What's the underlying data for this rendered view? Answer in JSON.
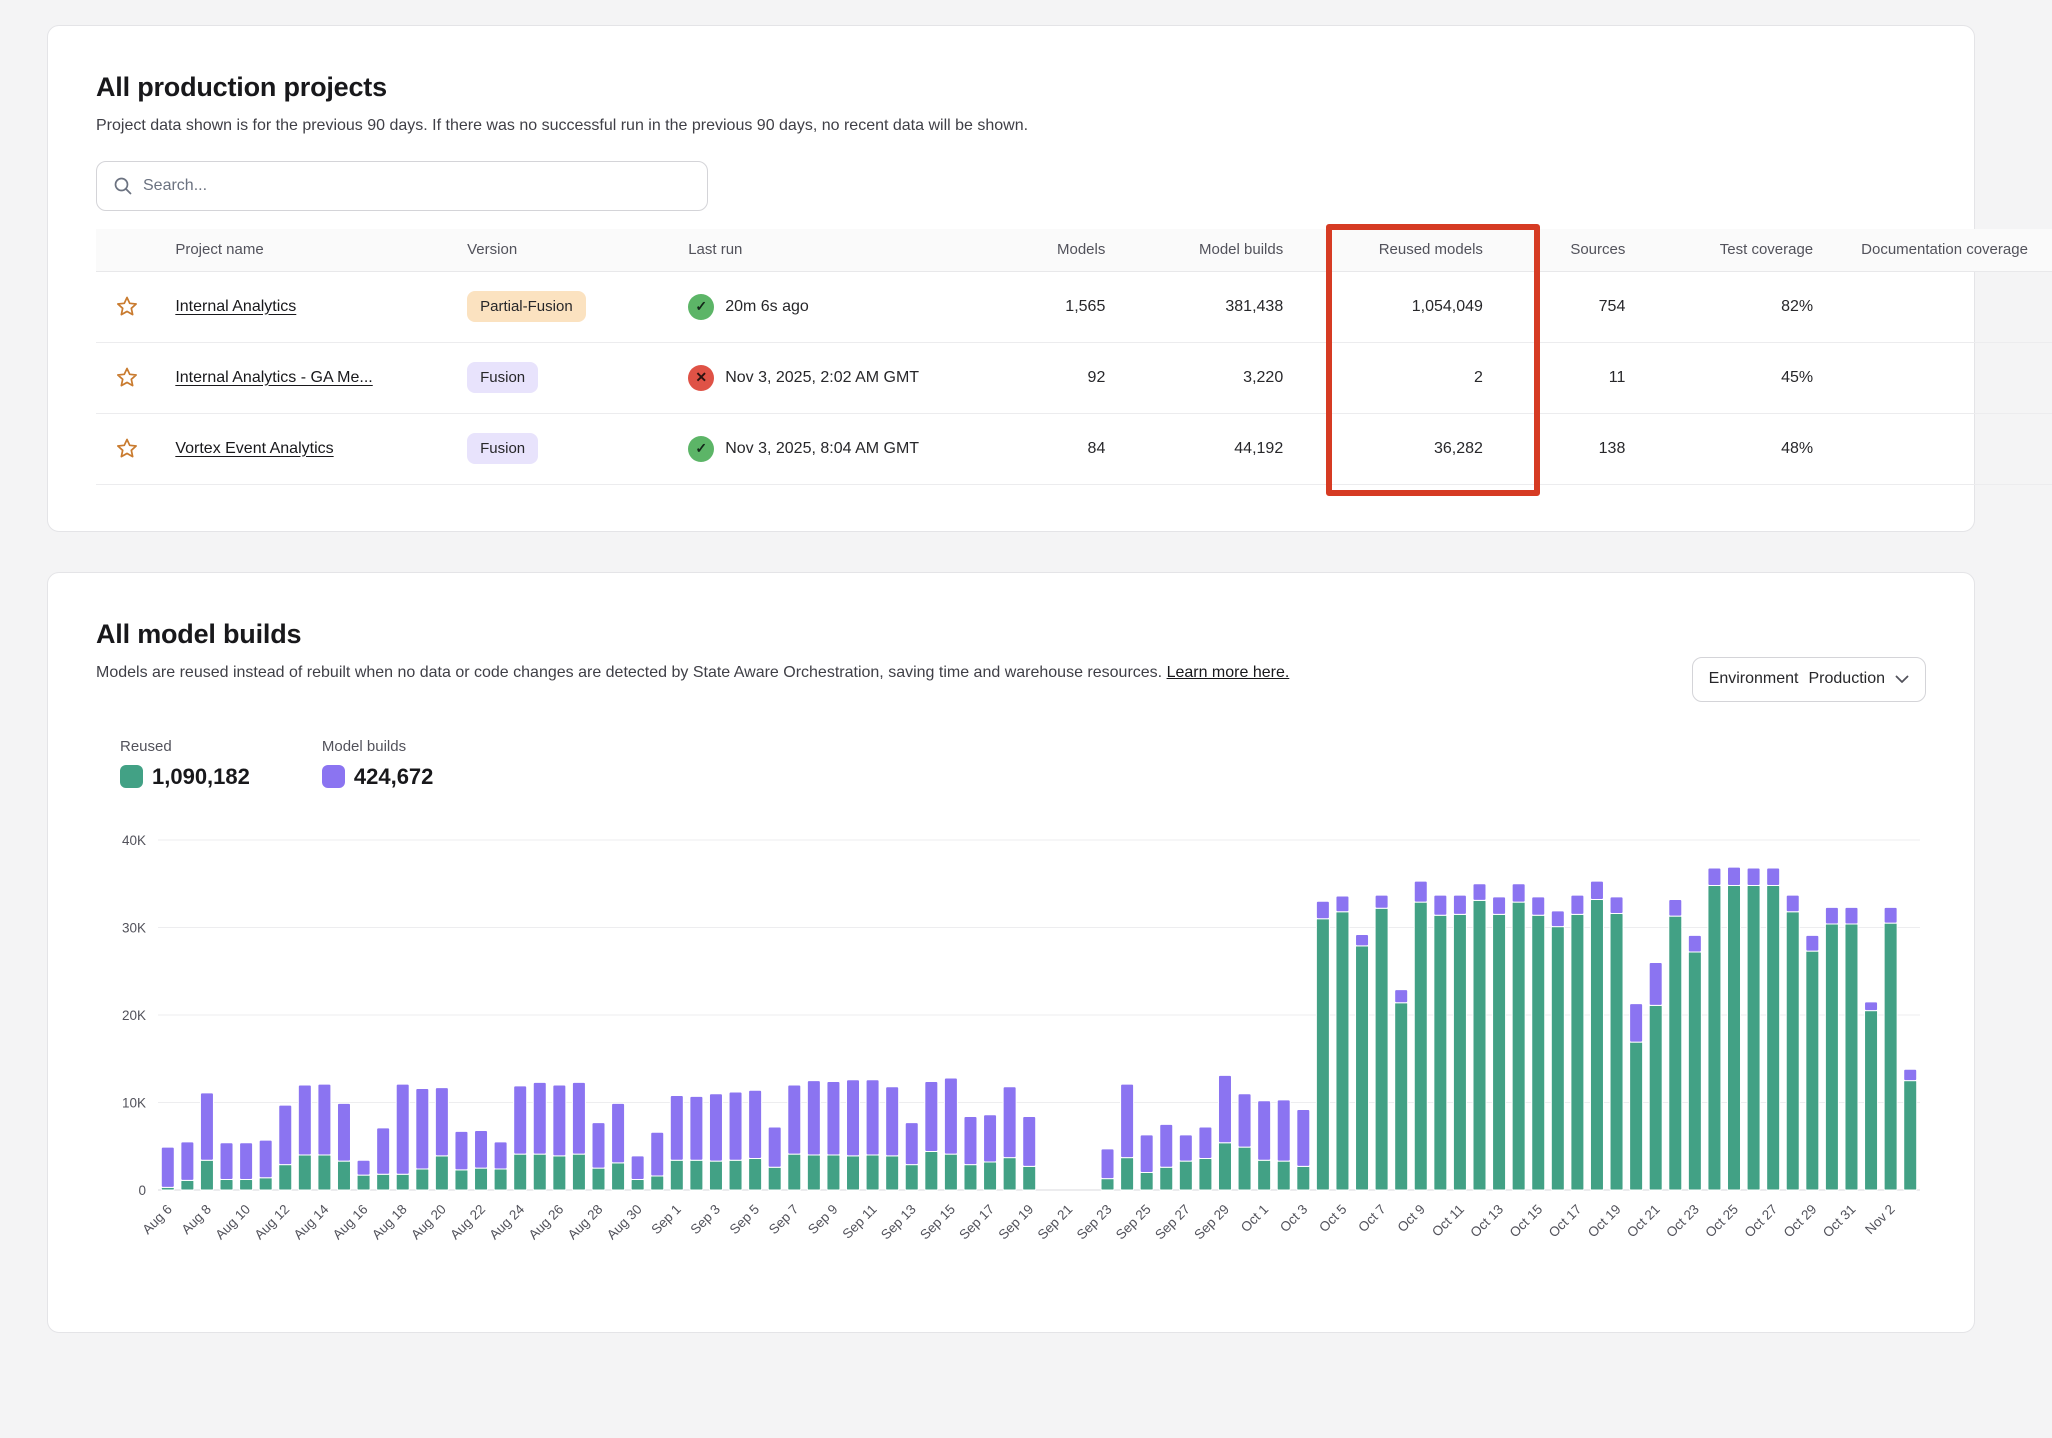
{
  "projects_card": {
    "title": "All production projects",
    "subtitle": "Project data shown is for the previous 90 days. If there was no successful run in the previous 90 days, no recent data will be shown.",
    "search_placeholder": "Search...",
    "columns": [
      "Project name",
      "Version",
      "Last run",
      "Models",
      "Model builds",
      "Reused models",
      "Sources",
      "Test coverage",
      "Documentation coverage"
    ],
    "highlight_color": "#d63b23",
    "rows": [
      {
        "name": "Internal Analytics",
        "version": "Partial-Fusion",
        "version_style": "partial",
        "status": "success",
        "last_run": "20m 6s ago",
        "models": "1,565",
        "model_builds": "381,438",
        "reused_models": "1,054,049",
        "sources": "754",
        "test_coverage": "82%"
      },
      {
        "name": "Internal Analytics - GA Me...",
        "version": "Fusion",
        "version_style": "fusion",
        "status": "error",
        "last_run": "Nov 3, 2025, 2:02 AM GMT",
        "models": "92",
        "model_builds": "3,220",
        "reused_models": "2",
        "sources": "11",
        "test_coverage": "45%"
      },
      {
        "name": "Vortex Event Analytics",
        "version": "Fusion",
        "version_style": "fusion",
        "status": "success",
        "last_run": "Nov 3, 2025, 8:04 AM GMT",
        "models": "84",
        "model_builds": "44,192",
        "reused_models": "36,282",
        "sources": "138",
        "test_coverage": "48%"
      }
    ]
  },
  "builds_card": {
    "title": "All model builds",
    "subtitle": "Models are reused instead of rebuilt when no data or code changes are detected by State Aware Orchestration, saving time and warehouse resources.",
    "learn_more": "Learn more here.",
    "env_label": "Environment",
    "env_value": "Production",
    "legend": [
      {
        "label": "Reused",
        "value": "1,090,182",
        "color": "#42a185"
      },
      {
        "label": "Model builds",
        "value": "424,672",
        "color": "#8b74f1"
      }
    ]
  },
  "chart_data": {
    "type": "bar",
    "subtype": "stacked",
    "title": "All model builds",
    "xlabel": "",
    "ylabel": "",
    "ylim": [
      0,
      40000
    ],
    "yticks": [
      "0",
      "10K",
      "20K",
      "30K",
      "40K"
    ],
    "grid": true,
    "legend_position": "top-left",
    "series_names": [
      "Reused",
      "Model builds"
    ],
    "colors": {
      "reused": "#42a185",
      "builds": "#8b74f1"
    },
    "days": [
      {
        "d": "Aug 6",
        "r": 300,
        "b": 4600
      },
      {
        "d": "Aug 7",
        "r": 1100,
        "b": 4400
      },
      {
        "d": "Aug 8",
        "r": 3400,
        "b": 7700
      },
      {
        "d": "Aug 9",
        "r": 1200,
        "b": 4200
      },
      {
        "d": "Aug 10",
        "r": 1200,
        "b": 4200
      },
      {
        "d": "Aug 11",
        "r": 1400,
        "b": 4300
      },
      {
        "d": "Aug 12",
        "r": 2900,
        "b": 6800
      },
      {
        "d": "Aug 13",
        "r": 4000,
        "b": 8000
      },
      {
        "d": "Aug 14",
        "r": 4000,
        "b": 8100
      },
      {
        "d": "Aug 15",
        "r": 3300,
        "b": 6600
      },
      {
        "d": "Aug 16",
        "r": 1700,
        "b": 1700
      },
      {
        "d": "Aug 17",
        "r": 1800,
        "b": 5300
      },
      {
        "d": "Aug 18",
        "r": 1800,
        "b": 10300
      },
      {
        "d": "Aug 19",
        "r": 2400,
        "b": 9200
      },
      {
        "d": "Aug 20",
        "r": 3900,
        "b": 7800
      },
      {
        "d": "Aug 21",
        "r": 2300,
        "b": 4400
      },
      {
        "d": "Aug 22",
        "r": 2500,
        "b": 4300
      },
      {
        "d": "Aug 23",
        "r": 2400,
        "b": 3100
      },
      {
        "d": "Aug 24",
        "r": 4100,
        "b": 7800
      },
      {
        "d": "Aug 25",
        "r": 4100,
        "b": 8200
      },
      {
        "d": "Aug 26",
        "r": 3900,
        "b": 8100
      },
      {
        "d": "Aug 27",
        "r": 4100,
        "b": 8200
      },
      {
        "d": "Aug 28",
        "r": 2500,
        "b": 5200
      },
      {
        "d": "Aug 29",
        "r": 3100,
        "b": 6800
      },
      {
        "d": "Aug 30",
        "r": 1200,
        "b": 2700
      },
      {
        "d": "Aug 31",
        "r": 1600,
        "b": 5000
      },
      {
        "d": "Sep 1",
        "r": 3400,
        "b": 7400
      },
      {
        "d": "Sep 2",
        "r": 3400,
        "b": 7300
      },
      {
        "d": "Sep 3",
        "r": 3300,
        "b": 7700
      },
      {
        "d": "Sep 4",
        "r": 3400,
        "b": 7800
      },
      {
        "d": "Sep 5",
        "r": 3600,
        "b": 7800
      },
      {
        "d": "Sep 6",
        "r": 2600,
        "b": 4600
      },
      {
        "d": "Sep 7",
        "r": 4100,
        "b": 7900
      },
      {
        "d": "Sep 8",
        "r": 4000,
        "b": 8500
      },
      {
        "d": "Sep 9",
        "r": 4000,
        "b": 8400
      },
      {
        "d": "Sep 10",
        "r": 3900,
        "b": 8700
      },
      {
        "d": "Sep 11",
        "r": 4000,
        "b": 8600
      },
      {
        "d": "Sep 12",
        "r": 3900,
        "b": 7900
      },
      {
        "d": "Sep 13",
        "r": 2900,
        "b": 4800
      },
      {
        "d": "Sep 14",
        "r": 4400,
        "b": 8000
      },
      {
        "d": "Sep 15",
        "r": 4100,
        "b": 8700
      },
      {
        "d": "Sep 16",
        "r": 2900,
        "b": 5500
      },
      {
        "d": "Sep 17",
        "r": 3200,
        "b": 5400
      },
      {
        "d": "Sep 18",
        "r": 3700,
        "b": 8100
      },
      {
        "d": "Sep 19",
        "r": 2700,
        "b": 5700
      },
      {
        "d": "Sep 20",
        "r": 0,
        "b": 0
      },
      {
        "d": "Sep 21",
        "r": 0,
        "b": 0
      },
      {
        "d": "Sep 22",
        "r": 0,
        "b": 0
      },
      {
        "d": "Sep 23",
        "r": 1300,
        "b": 3400
      },
      {
        "d": "Sep 24",
        "r": 3700,
        "b": 8400
      },
      {
        "d": "Sep 25",
        "r": 2000,
        "b": 4300
      },
      {
        "d": "Sep 26",
        "r": 2600,
        "b": 4900
      },
      {
        "d": "Sep 27",
        "r": 3300,
        "b": 3000
      },
      {
        "d": "Sep 28",
        "r": 3600,
        "b": 3600
      },
      {
        "d": "Sep 29",
        "r": 5400,
        "b": 7700
      },
      {
        "d": "Sep 30",
        "r": 4900,
        "b": 6100
      },
      {
        "d": "Oct 1",
        "r": 3400,
        "b": 6800
      },
      {
        "d": "Oct 2",
        "r": 3300,
        "b": 7000
      },
      {
        "d": "Oct 3",
        "r": 2700,
        "b": 6500
      },
      {
        "d": "Oct 4",
        "r": 31000,
        "b": 2000
      },
      {
        "d": "Oct 5",
        "r": 31800,
        "b": 1800
      },
      {
        "d": "Oct 6",
        "r": 27900,
        "b": 1300
      },
      {
        "d": "Oct 7",
        "r": 32200,
        "b": 1500
      },
      {
        "d": "Oct 8",
        "r": 21400,
        "b": 1500
      },
      {
        "d": "Oct 9",
        "r": 32900,
        "b": 2400
      },
      {
        "d": "Oct 10",
        "r": 31400,
        "b": 2300
      },
      {
        "d": "Oct 11",
        "r": 31500,
        "b": 2200
      },
      {
        "d": "Oct 12",
        "r": 33100,
        "b": 1900
      },
      {
        "d": "Oct 13",
        "r": 31500,
        "b": 2000
      },
      {
        "d": "Oct 14",
        "r": 32900,
        "b": 2100
      },
      {
        "d": "Oct 15",
        "r": 31400,
        "b": 2100
      },
      {
        "d": "Oct 16",
        "r": 30100,
        "b": 1800
      },
      {
        "d": "Oct 17",
        "r": 31500,
        "b": 2200
      },
      {
        "d": "Oct 18",
        "r": 33200,
        "b": 2100
      },
      {
        "d": "Oct 19",
        "r": 31600,
        "b": 1900
      },
      {
        "d": "Oct 20",
        "r": 16900,
        "b": 4400
      },
      {
        "d": "Oct 21",
        "r": 21100,
        "b": 4900
      },
      {
        "d": "Oct 22",
        "r": 31300,
        "b": 1900
      },
      {
        "d": "Oct 23",
        "r": 27200,
        "b": 1900
      },
      {
        "d": "Oct 24",
        "r": 34800,
        "b": 2000
      },
      {
        "d": "Oct 25",
        "r": 34800,
        "b": 2100
      },
      {
        "d": "Oct 26",
        "r": 34800,
        "b": 2000
      },
      {
        "d": "Oct 27",
        "r": 34800,
        "b": 2000
      },
      {
        "d": "Oct 28",
        "r": 31800,
        "b": 1900
      },
      {
        "d": "Oct 29",
        "r": 27300,
        "b": 1800
      },
      {
        "d": "Oct 30",
        "r": 30400,
        "b": 1900
      },
      {
        "d": "Oct 31",
        "r": 30400,
        "b": 1900
      },
      {
        "d": "Nov 1",
        "r": 20500,
        "b": 1000
      },
      {
        "d": "Nov 2",
        "r": 30500,
        "b": 1800
      },
      {
        "d": "Nov 3",
        "r": 12500,
        "b": 1300
      }
    ]
  }
}
